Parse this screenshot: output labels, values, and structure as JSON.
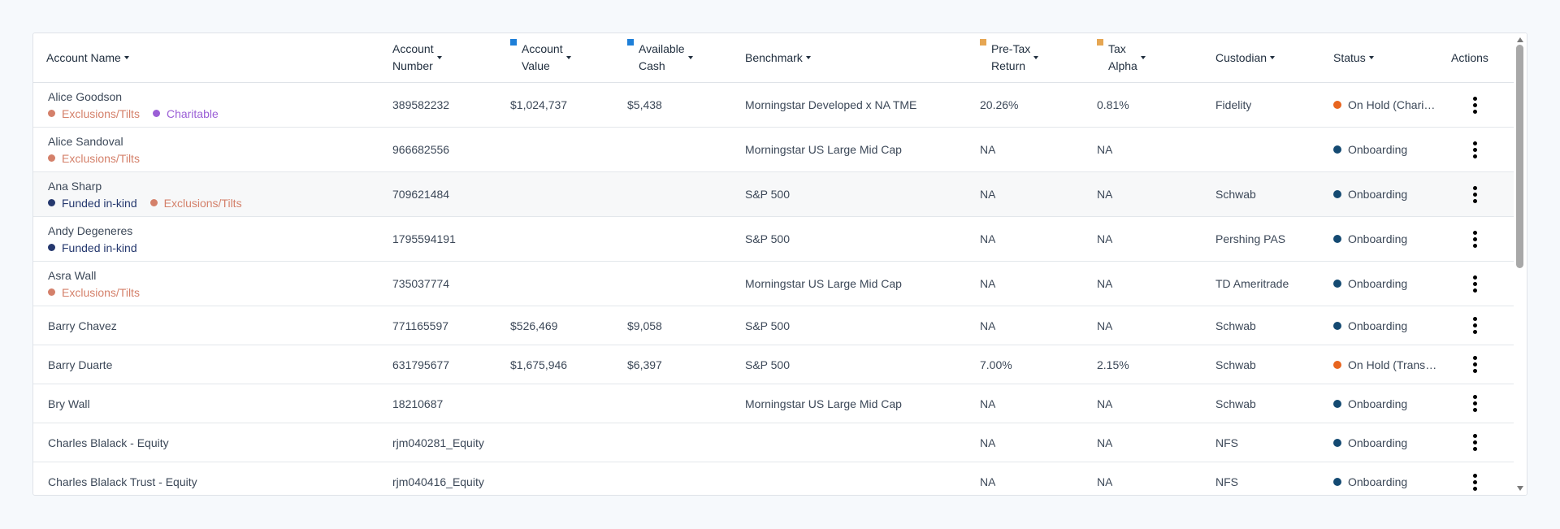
{
  "colors": {
    "exclusions": "#d4806a",
    "charitable": "#9b5fd6",
    "funded": "#25386e",
    "on_hold": "#e8651f",
    "onboarding": "#144a72",
    "account_value_marker": "#1e7fd8",
    "available_cash_marker": "#1e7fd8",
    "pretax_marker": "#e6a652",
    "tax_alpha_marker": "#e6a652"
  },
  "header": {
    "account_name": "Account Name",
    "account_number_l1": "Account",
    "account_number_l2": "Number",
    "account_value_l1": "Account",
    "account_value_l2": "Value",
    "available_cash_l1": "Available",
    "available_cash_l2": "Cash",
    "benchmark": "Benchmark",
    "pretax_l1": "Pre-Tax",
    "pretax_l2": "Return",
    "tax_alpha_l1": "Tax",
    "tax_alpha_l2": "Alpha",
    "custodian": "Custodian",
    "status": "Status",
    "actions": "Actions"
  },
  "rows": [
    {
      "name": "Alice Goodson",
      "tags": [
        "Exclusions/Tilts",
        "Charitable"
      ],
      "number": "389582232",
      "value": "$1,024,737",
      "cash": "$5,438",
      "benchmark": "Morningstar Developed x NA TME",
      "pretax": "20.26%",
      "alpha": "0.81%",
      "custodian": "Fidelity",
      "status": "On Hold (Charitable)"
    },
    {
      "name": "Alice Sandoval",
      "tags": [
        "Exclusions/Tilts"
      ],
      "number": "966682556",
      "value": "",
      "cash": "",
      "benchmark": "Morningstar US Large Mid Cap",
      "pretax": "NA",
      "alpha": "NA",
      "custodian": "",
      "status": "Onboarding"
    },
    {
      "name": "Ana Sharp",
      "tags": [
        "Funded in-kind",
        "Exclusions/Tilts"
      ],
      "number": "709621484",
      "value": "",
      "cash": "",
      "benchmark": "S&P 500",
      "pretax": "NA",
      "alpha": "NA",
      "custodian": "Schwab",
      "status": "Onboarding"
    },
    {
      "name": "Andy Degeneres",
      "tags": [
        "Funded in-kind"
      ],
      "number": "1795594191",
      "value": "",
      "cash": "",
      "benchmark": "S&P 500",
      "pretax": "NA",
      "alpha": "NA",
      "custodian": "Pershing PAS",
      "status": "Onboarding"
    },
    {
      "name": "Asra Wall",
      "tags": [
        "Exclusions/Tilts"
      ],
      "number": "735037774",
      "value": "",
      "cash": "",
      "benchmark": "Morningstar US Large Mid Cap",
      "pretax": "NA",
      "alpha": "NA",
      "custodian": "TD Ameritrade",
      "status": "Onboarding"
    },
    {
      "name": "Barry Chavez",
      "tags": [],
      "number": "771165597",
      "value": "$526,469",
      "cash": "$9,058",
      "benchmark": "S&P 500",
      "pretax": "NA",
      "alpha": "NA",
      "custodian": "Schwab",
      "status": "Onboarding"
    },
    {
      "name": "Barry Duarte",
      "tags": [],
      "number": "631795677",
      "value": "$1,675,946",
      "cash": "$6,397",
      "benchmark": "S&P 500",
      "pretax": "7.00%",
      "alpha": "2.15%",
      "custodian": "Schwab",
      "status": "On Hold (Transition)"
    },
    {
      "name": "Bry Wall",
      "tags": [],
      "number": "18210687",
      "value": "",
      "cash": "",
      "benchmark": "Morningstar US Large Mid Cap",
      "pretax": "NA",
      "alpha": "NA",
      "custodian": "Schwab",
      "status": "Onboarding"
    },
    {
      "name": "Charles Blalack - Equity",
      "tags": [],
      "number": "rjm040281_Equity",
      "value": "",
      "cash": "",
      "benchmark": "",
      "pretax": "NA",
      "alpha": "NA",
      "custodian": "NFS",
      "status": "Onboarding"
    },
    {
      "name": "Charles Blalack Trust - Equity",
      "tags": [],
      "number": "rjm040416_Equity",
      "value": "",
      "cash": "",
      "benchmark": "",
      "pretax": "NA",
      "alpha": "NA",
      "custodian": "NFS",
      "status": "Onboarding"
    }
  ]
}
